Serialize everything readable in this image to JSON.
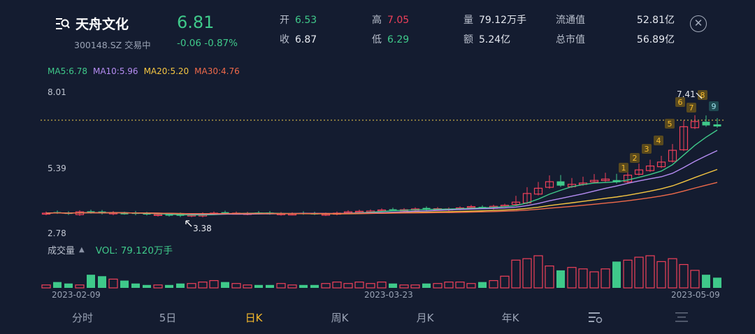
{
  "header": {
    "name": "天舟文化",
    "code_status": "300148.SZ 交易中",
    "price": "6.81",
    "change": "-0.06 -0.87%",
    "stats": [
      {
        "k": "开",
        "v": "6.53",
        "tone": "green"
      },
      {
        "k": "高",
        "v": "7.05",
        "tone": "red"
      },
      {
        "k": "量",
        "v": "79.12万手",
        "tone": ""
      },
      {
        "k": "流通值",
        "v": "52.81亿",
        "tone": ""
      },
      {
        "k": "收",
        "v": "6.87",
        "tone": ""
      },
      {
        "k": "低",
        "v": "6.29",
        "tone": "green"
      },
      {
        "k": "额",
        "v": "5.24亿",
        "tone": ""
      },
      {
        "k": "总市值",
        "v": "56.89亿",
        "tone": ""
      }
    ],
    "close_icon": "close-circle-icon"
  },
  "ma_legend": [
    {
      "text": "MA5:6.78",
      "color": "#3fc98a"
    },
    {
      "text": "MA10:5.96",
      "color": "#b58cf2"
    },
    {
      "text": "MA20:5.20",
      "color": "#f5c642"
    },
    {
      "text": "MA30:4.76",
      "color": "#f06a4a"
    }
  ],
  "axis": {
    "high": "8.01",
    "mid": "5.39",
    "low": "2.78"
  },
  "annotations": {
    "max_label": "7.41",
    "min_label": "3.38",
    "current_price_line": "6.81"
  },
  "td_signals": [
    "1",
    "2",
    "3",
    "4",
    "5",
    "6",
    "7",
    "8",
    "9"
  ],
  "colors": {
    "up": "#f0405a",
    "down": "#3fc98a",
    "bg": "#141c30",
    "accent": "#f5b92b"
  },
  "volume": {
    "label": "成交量",
    "value": "VOL: 79.120万手"
  },
  "dates": [
    "2023-02-09",
    "2023-03-23",
    "2023-05-09"
  ],
  "tabs": [
    {
      "label": "分时"
    },
    {
      "label": "5日"
    },
    {
      "label": "日K",
      "active": true
    },
    {
      "label": "周K"
    },
    {
      "label": "月K"
    },
    {
      "label": "年K"
    },
    {
      "label": "",
      "icon": "indicator-settings-icon"
    },
    {
      "label": "",
      "icon": "menu-lines-icon"
    }
  ]
}
